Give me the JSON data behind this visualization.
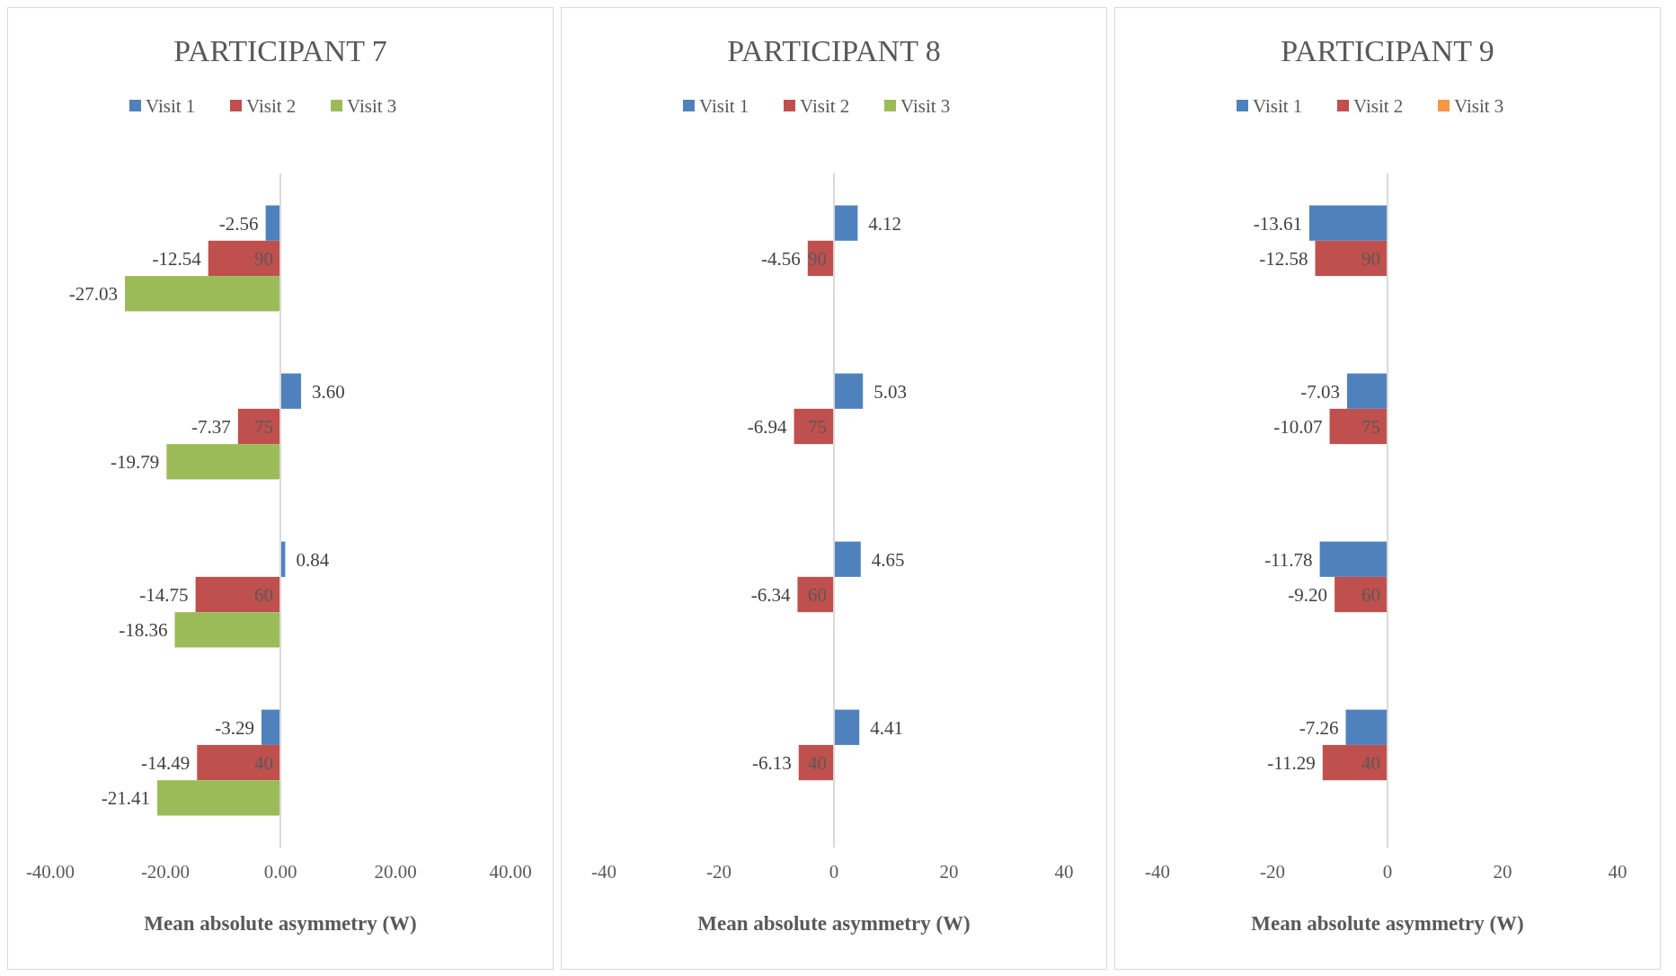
{
  "chart_data": [
    {
      "type": "bar",
      "orientation": "horizontal",
      "title": "PARTICIPANT 7",
      "xlabel": "Mean absolute asymmetry (W)",
      "categories": [
        "90",
        "75",
        "60",
        "40"
      ],
      "legend": "top",
      "grid": false,
      "xlim": [
        -40,
        40
      ],
      "xticks": [
        {
          "value": -40,
          "label": "-40.00"
        },
        {
          "value": -20,
          "label": "-20.00"
        },
        {
          "value": 0,
          "label": "0.00"
        },
        {
          "value": 20,
          "label": "20.00"
        },
        {
          "value": 40,
          "label": "40.00"
        }
      ],
      "series": [
        {
          "name": "Visit 1",
          "color": "#4f81bd",
          "values": [
            -2.56,
            3.6,
            0.84,
            -3.29
          ],
          "value_labels": [
            "-2.56",
            "3.60",
            "0.84",
            "-3.29"
          ]
        },
        {
          "name": "Visit 2",
          "color": "#c0504d",
          "values": [
            -12.54,
            -7.37,
            -14.75,
            -14.49
          ],
          "value_labels": [
            "-12.54",
            "-7.37",
            "-14.75",
            "-14.49"
          ]
        },
        {
          "name": "Visit 3",
          "color": "#9bbb59",
          "values": [
            -27.03,
            -19.79,
            -18.36,
            -21.41
          ],
          "value_labels": [
            "-27.03",
            "-19.79",
            "-18.36",
            "-21.41"
          ]
        }
      ]
    },
    {
      "type": "bar",
      "orientation": "horizontal",
      "title": "PARTICIPANT 8",
      "xlabel": "Mean absolute asymmetry (W)",
      "categories": [
        "90",
        "75",
        "60",
        "40"
      ],
      "legend": "top",
      "grid": false,
      "xlim": [
        -40,
        40
      ],
      "xticks": [
        -40,
        -20,
        0,
        20,
        40
      ],
      "series": [
        {
          "name": "Visit 1",
          "color": "#4f81bd",
          "values": [
            4.12,
            5.03,
            4.65,
            4.41
          ],
          "value_labels": [
            "4.12",
            "5.03",
            "4.65",
            "4.41"
          ]
        },
        {
          "name": "Visit 2",
          "color": "#c0504d",
          "values": [
            -4.56,
            -6.94,
            -6.34,
            -6.13
          ],
          "value_labels": [
            "-4.56",
            "-6.94",
            "-6.34",
            "-6.13"
          ]
        },
        {
          "name": "Visit 3",
          "color": "#9bbb59",
          "values": [
            null,
            null,
            null,
            null
          ]
        }
      ]
    },
    {
      "type": "bar",
      "orientation": "horizontal",
      "title": "PARTICIPANT 9",
      "xlabel": "Mean absolute asymmetry (W)",
      "categories": [
        "90",
        "75",
        "60",
        "40"
      ],
      "legend": "top",
      "grid": false,
      "xlim": [
        -40,
        40
      ],
      "xticks": [
        -40,
        -20,
        0,
        20,
        40
      ],
      "series": [
        {
          "name": "Visit 1",
          "color": "#4f81bd",
          "values": [
            -13.61,
            -7.03,
            -11.78,
            -7.26
          ],
          "value_labels": [
            "-13.61",
            "-7.03",
            "-11.78",
            "-7.26"
          ]
        },
        {
          "name": "Visit 2",
          "color": "#c0504d",
          "values": [
            -12.58,
            -10.07,
            -9.2,
            -11.29
          ],
          "value_labels": [
            "-12.58",
            "-10.07",
            "-9.20",
            "-11.29"
          ]
        },
        {
          "name": "Visit 3",
          "color": "#f79646",
          "values": [
            null,
            null,
            null,
            null
          ]
        }
      ]
    }
  ]
}
